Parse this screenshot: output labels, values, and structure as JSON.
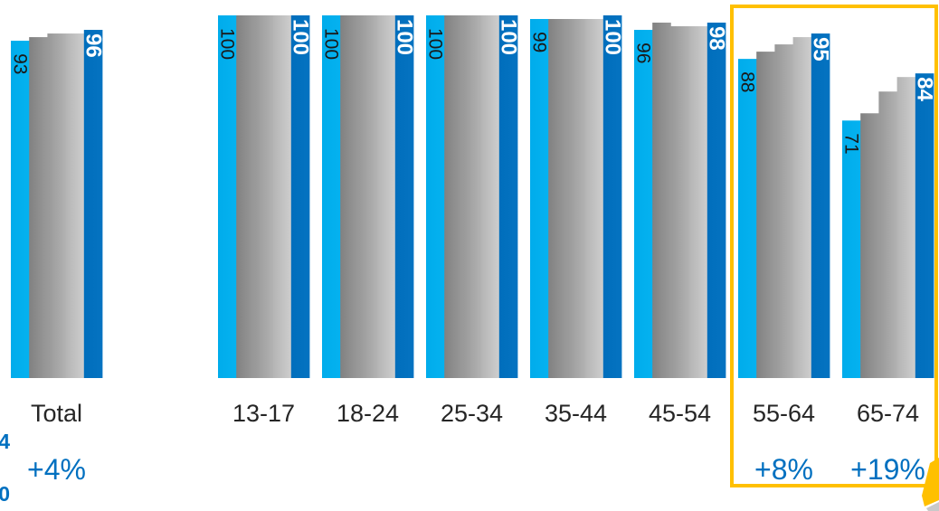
{
  "accent_text_color": "#0070C0",
  "left_edge_text": [
    "4",
    "0"
  ],
  "chart_data": {
    "type": "bar",
    "categories": [
      "Total",
      "13-17",
      "18-24",
      "25-34",
      "35-44",
      "45-54",
      "55-64",
      "65-74"
    ],
    "series": [
      {
        "color": "#00B0F0",
        "show_labels": true,
        "values": [
          93,
          100,
          100,
          100,
          99,
          96,
          88,
          71
        ]
      },
      {
        "color": "#8F8F8F",
        "show_labels": false,
        "values": [
          94,
          100,
          100,
          100,
          99,
          98,
          90,
          73
        ]
      },
      {
        "color": "#A9A9A9",
        "show_labels": false,
        "values": [
          95,
          100,
          100,
          100,
          99,
          97,
          92,
          79
        ]
      },
      {
        "color": "#C8C8C8",
        "show_labels": false,
        "values": [
          95,
          100,
          100,
          100,
          99,
          97,
          94,
          83
        ]
      },
      {
        "color": "#0070C0",
        "show_labels": true,
        "values": [
          96,
          100,
          100,
          100,
          100,
          98,
          95,
          84
        ]
      }
    ],
    "growth": [
      "+4%",
      "",
      "",
      "",
      "",
      "",
      "+8%",
      "+19%"
    ],
    "ylim": [
      0,
      100
    ],
    "grid": false,
    "legend": "none",
    "highlighted_category_indices": [
      6,
      7
    ],
    "highlight_color": "#FFC000"
  }
}
